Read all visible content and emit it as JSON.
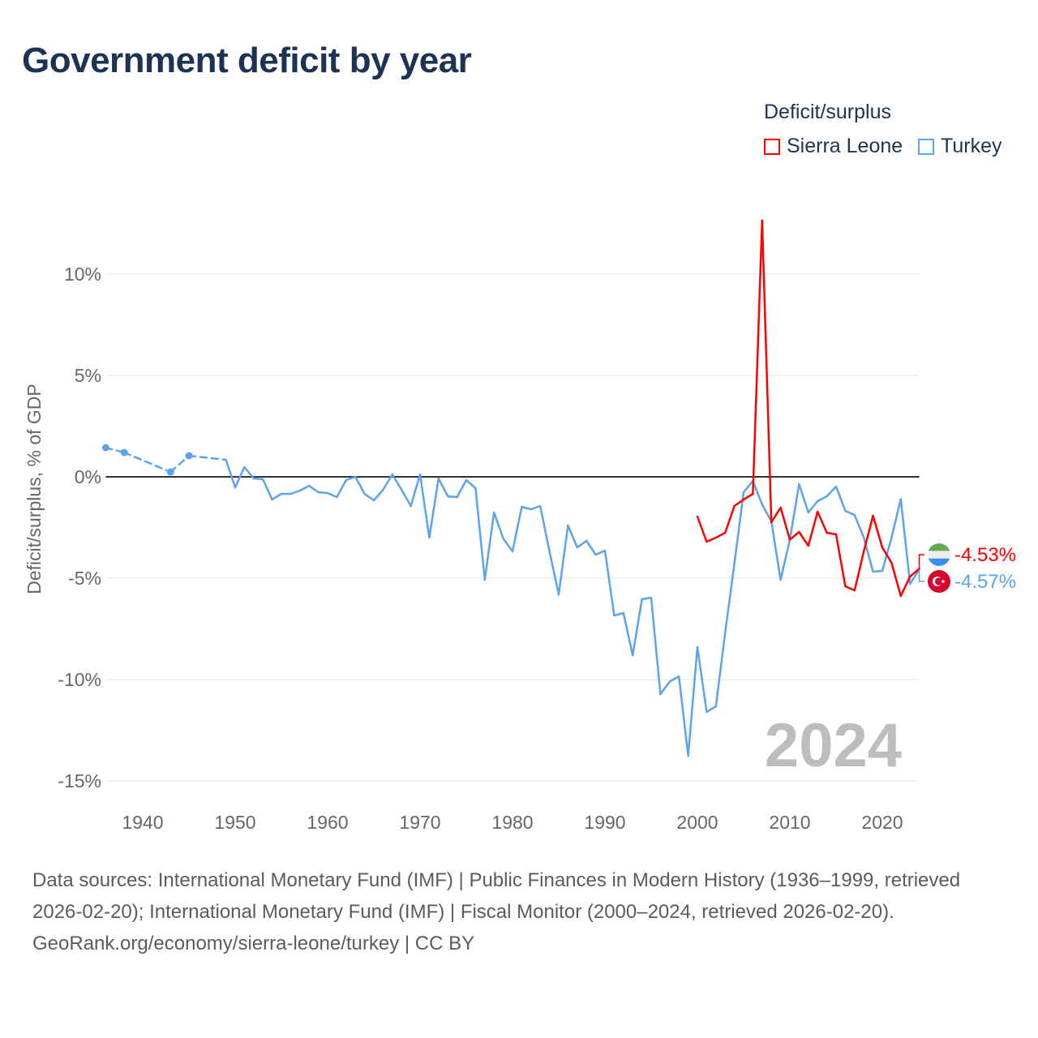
{
  "title": "Government deficit by year",
  "legend": {
    "title": "Deficit/surplus",
    "items": [
      {
        "name": "Sierra Leone",
        "color": "#ff0000"
      },
      {
        "name": "Turkey",
        "color": "#5ba3ea"
      }
    ]
  },
  "year_label": "2024",
  "end_labels": {
    "sierra_leone": "-4.53%",
    "turkey": "-4.57%"
  },
  "sources": "Data sources: International Monetary Fund (IMF) | Public Finances in Modern History (1936–1999, retrieved 2026-02-20); International Monetary Fund (IMF) | Fiscal Monitor (2000–2024, retrieved 2026-02-20).",
  "credit": "GeoRank.org/economy/sierra-leone/turkey | CC BY",
  "chart_data": {
    "type": "line",
    "title": "Government deficit by year",
    "xlabel": "",
    "ylabel": "Deficit/surplus, % of GDP",
    "xlim": [
      1936,
      2024
    ],
    "ylim": [
      -15,
      13
    ],
    "x_ticks": [
      1940,
      1950,
      1960,
      1970,
      1980,
      1990,
      2000,
      2010,
      2020
    ],
    "y_ticks": [
      {
        "v": 10,
        "label": "10%"
      },
      {
        "v": 5,
        "label": "5%"
      },
      {
        "v": 0,
        "label": "0%"
      },
      {
        "v": -5,
        "label": "-5%"
      },
      {
        "v": -10,
        "label": "-10%"
      },
      {
        "v": -15,
        "label": "-15%"
      }
    ],
    "grid": true,
    "legend_position": "top-right",
    "series": [
      {
        "name": "Turkey",
        "color": "#5ba3ea",
        "x": [
          1936,
          1938,
          1943,
          1945,
          1949,
          1950,
          1951,
          1952,
          1953,
          1954,
          1955,
          1956,
          1957,
          1958,
          1959,
          1960,
          1961,
          1962,
          1963,
          1964,
          1965,
          1966,
          1967,
          1968,
          1969,
          1970,
          1971,
          1972,
          1973,
          1974,
          1975,
          1976,
          1977,
          1978,
          1979,
          1980,
          1981,
          1982,
          1983,
          1984,
          1985,
          1986,
          1987,
          1988,
          1989,
          1990,
          1991,
          1992,
          1993,
          1994,
          1995,
          1996,
          1997,
          1998,
          1999,
          2000,
          2001,
          2002,
          2003,
          2004,
          2005,
          2006,
          2007,
          2008,
          2009,
          2010,
          2011,
          2012,
          2013,
          2014,
          2015,
          2016,
          2017,
          2018,
          2019,
          2020,
          2021,
          2022,
          2023,
          2024
        ],
        "values": [
          1.44,
          1.2,
          0.24,
          1.04,
          0.84,
          -0.52,
          0.48,
          -0.08,
          -0.12,
          -1.12,
          -0.84,
          -0.84,
          -0.68,
          -0.44,
          -0.76,
          -0.8,
          -1.0,
          -0.16,
          0,
          -0.84,
          -1.16,
          -0.64,
          0.12,
          -0.64,
          -1.44,
          0.12,
          -3.0,
          -0.08,
          -0.96,
          -1.0,
          -0.16,
          -0.56,
          -5.08,
          -1.76,
          -3.04,
          -3.68,
          -1.48,
          -1.6,
          -1.44,
          -3.68,
          -5.8,
          -2.4,
          -3.48,
          -3.16,
          -3.84,
          -3.64,
          -6.84,
          -6.72,
          -8.8,
          -6.04,
          -5.96,
          -10.72,
          -10.1,
          -9.84,
          -13.76,
          -8.4,
          -11.6,
          -11.32,
          -7.7,
          -4.28,
          -0.76,
          -0.2,
          -1.36,
          -2.2,
          -5.08,
          -3.1,
          -0.36,
          -1.76,
          -1.2,
          -0.96,
          -0.48,
          -1.68,
          -1.88,
          -3.0,
          -4.68,
          -4.64,
          -3.0,
          -1.1,
          -5.28,
          -4.57
        ]
      },
      {
        "name": "Sierra Leone",
        "color": "#ff0000",
        "x": [
          2000,
          2001,
          2002,
          2003,
          2004,
          2005,
          2006,
          2007,
          2008,
          2009,
          2010,
          2011,
          2012,
          2013,
          2014,
          2015,
          2016,
          2017,
          2018,
          2019,
          2020,
          2021,
          2022,
          2023,
          2024
        ],
        "values": [
          -1.96,
          -3.2,
          -3.0,
          -2.76,
          -1.44,
          -1.12,
          -0.84,
          12.64,
          -2.24,
          -1.52,
          -3.1,
          -2.72,
          -3.4,
          -1.72,
          -2.76,
          -2.84,
          -5.4,
          -5.6,
          -3.68,
          -1.92,
          -3.48,
          -4.24,
          -5.88,
          -4.92,
          -4.53
        ]
      }
    ]
  }
}
